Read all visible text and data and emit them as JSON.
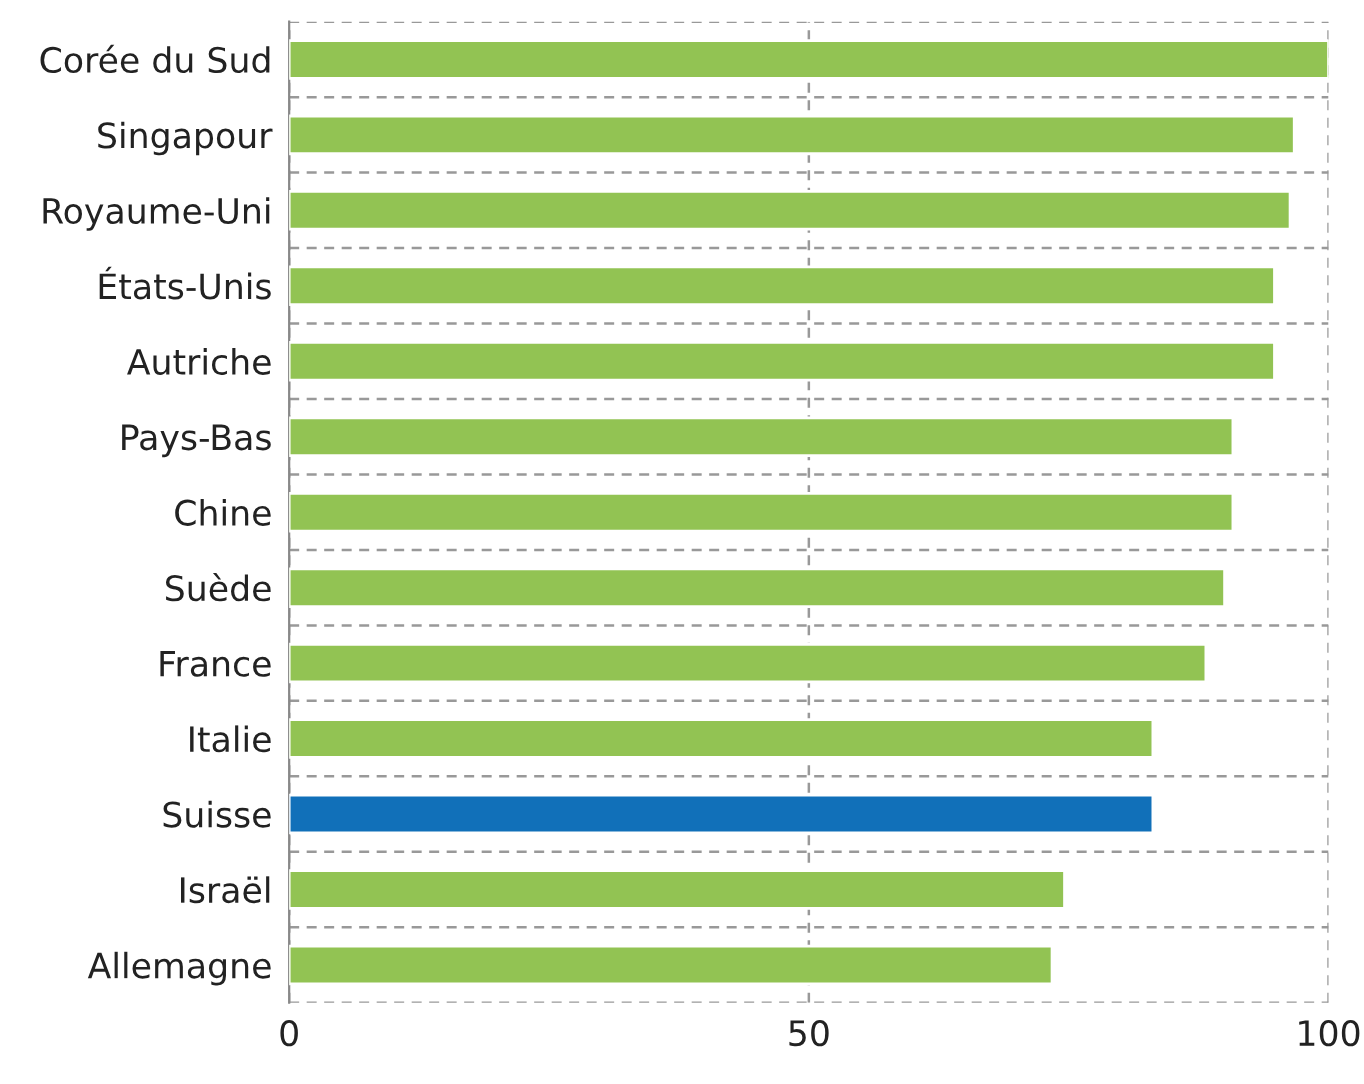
{
  "chart_data": {
    "type": "bar",
    "orientation": "horizontal",
    "categories": [
      "Corée du Sud",
      "Singapour",
      "Royaume-Uni",
      "États-Unis",
      "Autriche",
      "Pays-Bas",
      "Chine",
      "Suède",
      "France",
      "Italie",
      "Suisse",
      "Israël",
      "Allemagne"
    ],
    "values": [
      100,
      96.7,
      96.3,
      94.8,
      94.8,
      90.8,
      90.8,
      90.0,
      88.2,
      83.1,
      83.1,
      74.6,
      73.4
    ],
    "colors": [
      "#92c353",
      "#92c353",
      "#92c353",
      "#92c353",
      "#92c353",
      "#92c353",
      "#92c353",
      "#92c353",
      "#92c353",
      "#92c353",
      "#1170b9",
      "#92c353",
      "#92c353"
    ],
    "xlim": [
      0,
      100
    ],
    "xticks": [
      0,
      50,
      100
    ],
    "grid": true
  }
}
